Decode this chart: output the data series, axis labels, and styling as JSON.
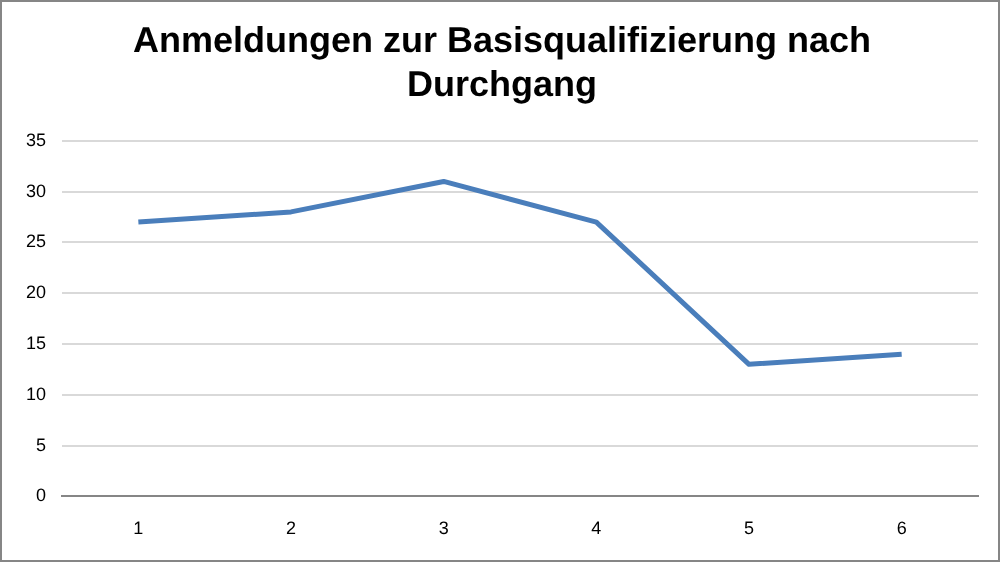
{
  "chart_data": {
    "type": "line",
    "title": "Anmeldungen zur Basisqualifizierung nach Durchgang",
    "categories": [
      "1",
      "2",
      "3",
      "4",
      "5",
      "6"
    ],
    "series": [
      {
        "color": "#4a7ebb",
        "values": [
          27,
          28,
          31,
          27,
          13,
          14
        ]
      }
    ],
    "ylim": [
      0,
      35
    ],
    "yticks": [
      0,
      5,
      10,
      15,
      20,
      25,
      30,
      35
    ],
    "grid": "y",
    "legend": false,
    "marker": "none",
    "line_style": "solid"
  }
}
